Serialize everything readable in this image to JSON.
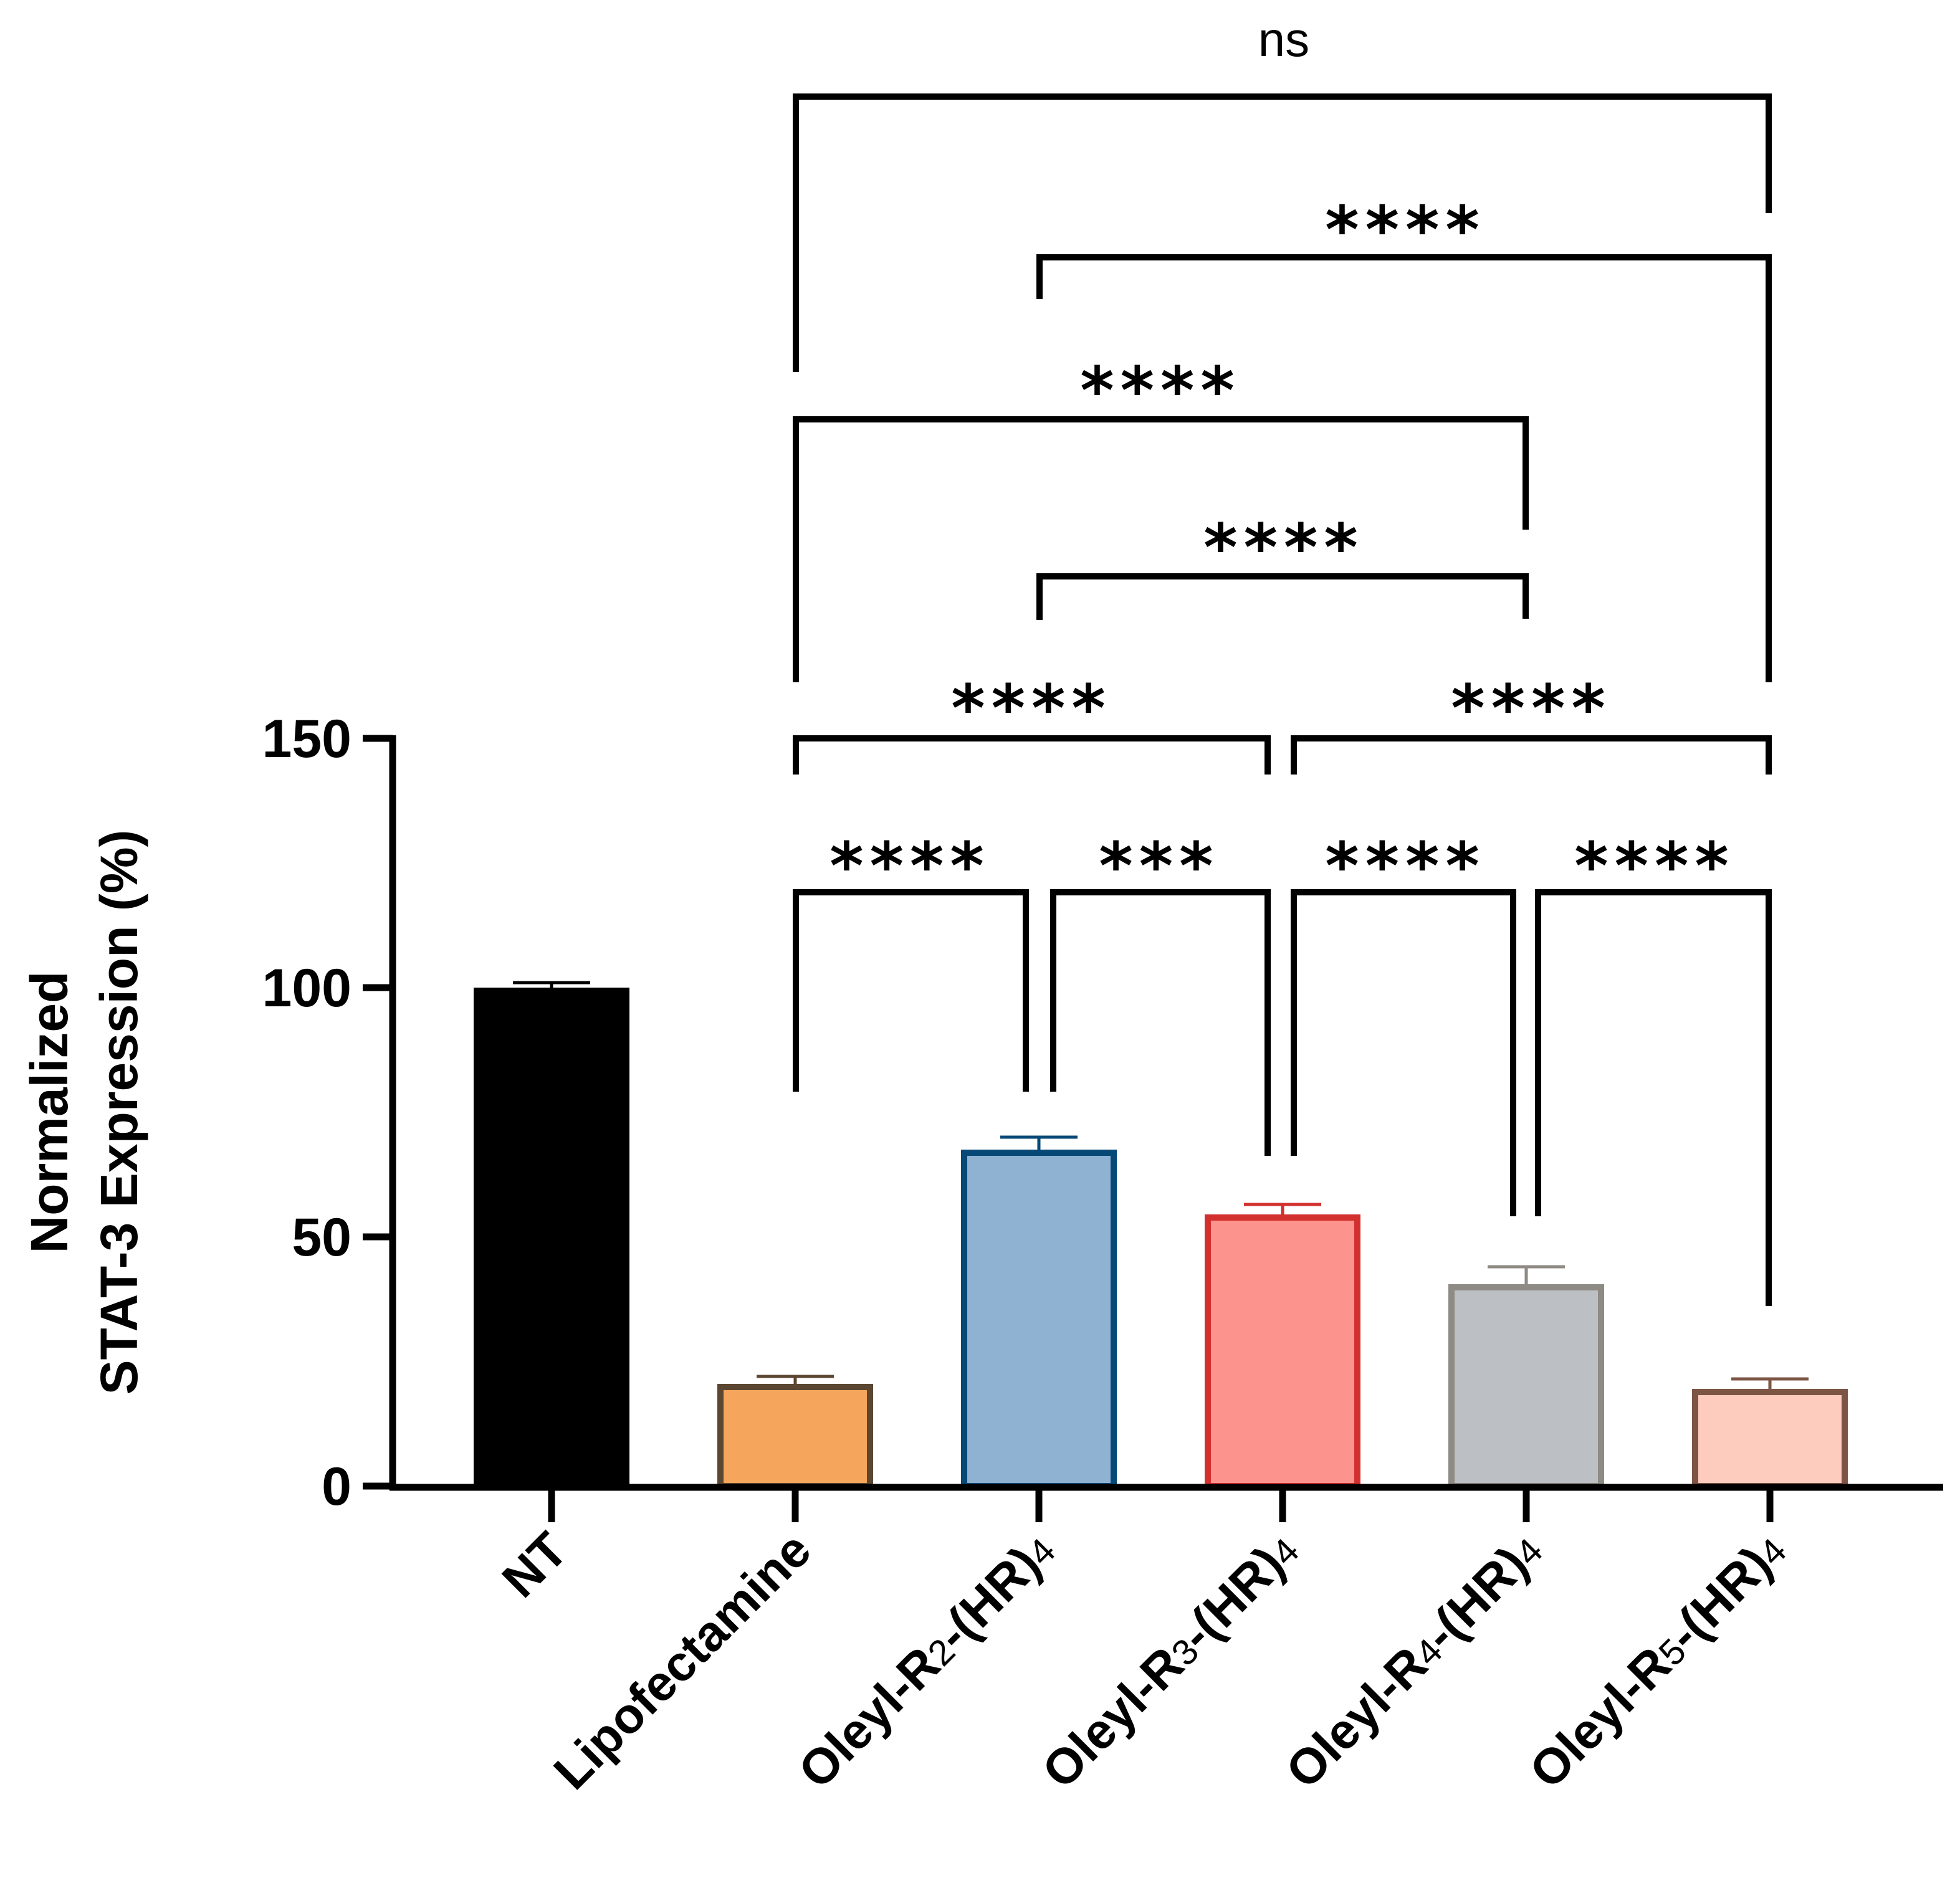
{
  "chart_data": {
    "type": "bar",
    "ylabel_lines": [
      "Normalized",
      "STAT-3 Expression (%)"
    ],
    "ylim": [
      0,
      150
    ],
    "yticks": [
      0,
      50,
      100,
      150
    ],
    "categories": [
      {
        "label": "NT",
        "base": "NT",
        "sub": "",
        "suffix": ""
      },
      {
        "label": "Lipofectamine",
        "base": "Lipofectamine",
        "sub": "",
        "suffix": ""
      },
      {
        "label": "Oleyl-R2-(HR)4",
        "base": "Oleyl-R",
        "sub": "2",
        "suffix": "-(HR)",
        "sub2": "4"
      },
      {
        "label": "Oleyl-R3-(HR)4",
        "base": "Oleyl-R",
        "sub": "3",
        "suffix": "-(HR)",
        "sub2": "4"
      },
      {
        "label": "Oleyl-R4-(HR)4",
        "base": "Oleyl-R",
        "sub": "4",
        "suffix": "-(HR)",
        "sub2": "4"
      },
      {
        "label": "Oleyl-R5-(HR)4",
        "base": "Oleyl-R",
        "sub": "5",
        "suffix": "-(HR)",
        "sub2": "4"
      }
    ],
    "values": [
      100,
      20.5,
      67.5,
      54.5,
      40.5,
      19.5
    ],
    "errors": [
      1.0,
      1.5,
      2.5,
      2.0,
      3.5,
      2.0
    ],
    "colors": {
      "fill": [
        "#000000",
        "#f6a65c",
        "#8fb1d2",
        "#fc948d",
        "#bcbfc3",
        "#fecbbf"
      ],
      "stroke": [
        "#000000",
        "#5b4632",
        "#064876",
        "#d2302f",
        "#8e8a84",
        "#7d5544"
      ]
    },
    "comparisons": [
      {
        "from": 1,
        "to": 2,
        "label": "****"
      },
      {
        "from": 2,
        "to": 3,
        "label": "***"
      },
      {
        "from": 3,
        "to": 4,
        "label": "****"
      },
      {
        "from": 4,
        "to": 5,
        "label": "****"
      },
      {
        "from": 1,
        "to": 3,
        "label": "****"
      },
      {
        "from": 3,
        "to": 5,
        "label": "****"
      },
      {
        "from": 2,
        "to": 4,
        "label": "****"
      },
      {
        "from": 1,
        "to": 4,
        "label": "****"
      },
      {
        "from": 2,
        "to": 5,
        "label": "****"
      },
      {
        "from": 1,
        "to": 5,
        "label": "ns"
      }
    ]
  }
}
